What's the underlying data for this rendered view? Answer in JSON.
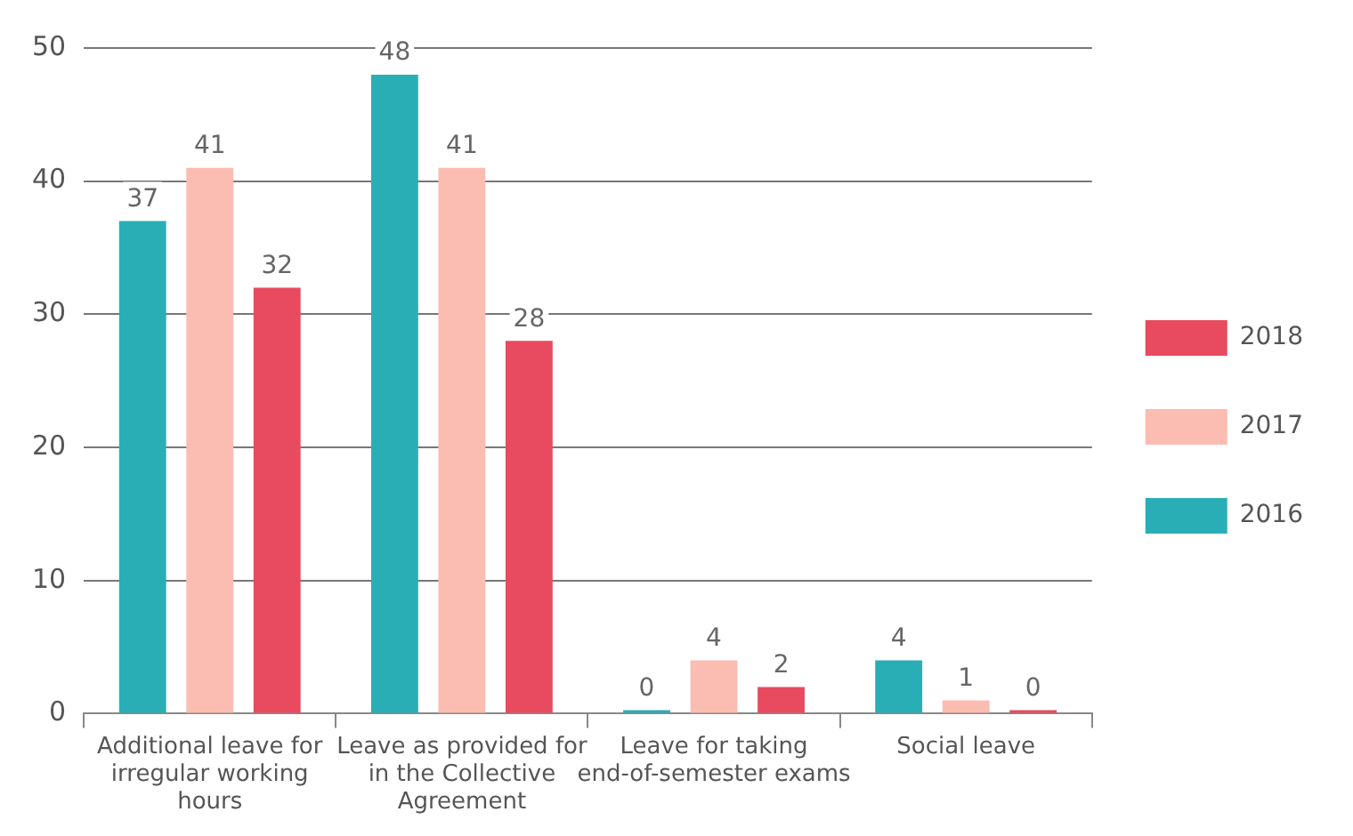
{
  "chart_data": {
    "type": "bar",
    "categories": [
      "Additional leave for irregular working hours",
      "Leave as provided for in the Collective Agreement",
      "Leave for taking end-of-semester exams",
      "Social leave"
    ],
    "series": [
      {
        "name": "2016",
        "color": "#2aaeb5",
        "values": [
          37,
          48,
          0,
          4
        ]
      },
      {
        "name": "2017",
        "color": "#fbbcb2",
        "values": [
          41,
          41,
          4,
          1
        ]
      },
      {
        "name": "2018",
        "color": "#e84a5f",
        "values": [
          32,
          28,
          2,
          0
        ]
      }
    ],
    "ylim": [
      0,
      50
    ],
    "yticks": [
      0,
      10,
      20,
      30,
      40,
      50
    ],
    "grid": "y",
    "legend": "right",
    "data_labels": true
  }
}
